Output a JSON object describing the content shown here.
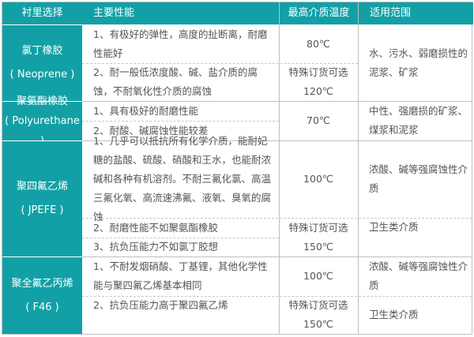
{
  "header": {
    "col1": "衬里选择",
    "col2": "主要性能",
    "col3": "最高介质温度",
    "col4": "适用范围"
  },
  "rows": [
    {
      "name": "氯丁橡胶",
      "code": "( Neoprene )",
      "props": [
        "1、有极好的弹性，高度的扯断离，耐磨性能好",
        "2、耐一般低浓度酸、碱、盐介质的腐蚀，不耐氧化性介质的腐蚀"
      ],
      "temps": [
        "80℃",
        "特殊订货可选",
        "120℃"
      ],
      "use": [
        "水、污水、弱磨损性的泥浆、矿浆"
      ]
    },
    {
      "name": "聚氨酯橡胶",
      "code": "( Polyurethane )",
      "props": [
        "1、具有极好的耐磨性能",
        "2、耐酸、碱腐蚀性能较差"
      ],
      "temps": [
        "70℃"
      ],
      "use": [
        "中性、强磨损的矿浆、煤浆和泥浆"
      ]
    },
    {
      "name": "聚四氟乙烯",
      "code": "( JPEFE )",
      "props": [
        "1、几乎可以抵抗所有化学介质，能耐妃糖的盐酸、硫酸、硝酸和王水，也能耐浓碱和各种有机溶剂。不耐三氟化氯、高温三氟化氧、高流速沸氟、液氧、臭氧的腐蚀",
        "2、耐磨性能不如聚氨酯橡胶",
        "3、抗负压能力不如氯丁胶想"
      ],
      "temps": [
        "100℃",
        "特殊订货可选",
        "150℃"
      ],
      "use": [
        "浓酸、碱等强腐蚀性介质",
        "卫生类介质"
      ]
    },
    {
      "name": "聚全氟乙丙烯",
      "code": "( F46 )",
      "props": [
        "1、不耐发烟硝酸、丁基锂，其他化学性能与聚四氟乙烯基本相同",
        "2、抗负压能力高于聚四氟乙烯"
      ],
      "temps": [
        "100℃",
        "特殊订货可选",
        "150℃"
      ],
      "use": [
        "浓酸、碱等强腐蚀性介质",
        "卫生类介质"
      ]
    }
  ],
  "colors": {
    "accent": "#12a0a6",
    "border": "#bfbfbf",
    "text": "#555555"
  }
}
